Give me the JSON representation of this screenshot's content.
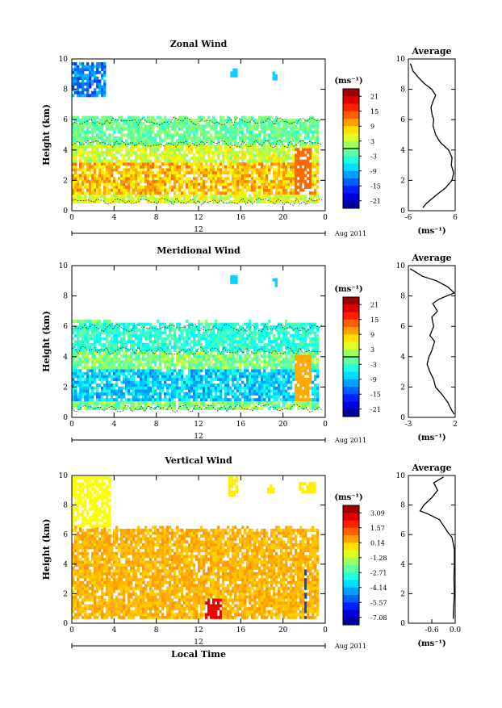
{
  "chart_data": [
    {
      "type": "heatmap",
      "title": "Zonal Wind",
      "ylabel": "Height (km)",
      "xlabel": "",
      "ylim": [
        0,
        10
      ],
      "xlim": [
        0,
        24
      ],
      "x_ticks": [
        "0",
        "4",
        "8",
        "12",
        "16",
        "20",
        "0"
      ],
      "y_ticks": [
        "0",
        "2",
        "4",
        "6",
        "8",
        "10"
      ],
      "date_mid_label": "12",
      "date_label": "Aug 2011",
      "colorbar": {
        "unit": "(ms⁻¹)",
        "ticks": [
          "21",
          "15",
          "9",
          "3",
          "-3",
          "-9",
          "-15",
          "-21"
        ],
        "range": [
          -24,
          24
        ],
        "contour_at": 0
      },
      "field": {
        "top_max": 6.2,
        "blue_top_region": [
          [
            0,
            3,
            7.5,
            9.6
          ],
          [
            15,
            15.5,
            8.8,
            9.3
          ],
          [
            19,
            19.3,
            8.6,
            9.1
          ]
        ],
        "base": 0.5
      },
      "average": {
        "title": "Average",
        "xlabel": "(ms⁻¹)",
        "xticks": [
          "-6",
          "6"
        ],
        "xlim": [
          -6,
          6
        ],
        "points": [
          [
            -5.5,
            9.7
          ],
          [
            -4.8,
            9.2
          ],
          [
            -3.5,
            8.8
          ],
          [
            -2,
            8.4
          ],
          [
            0,
            8
          ],
          [
            1,
            7.6
          ],
          [
            0.3,
            7.2
          ],
          [
            -0.2,
            6.8
          ],
          [
            0.1,
            6.3
          ],
          [
            0.5,
            6
          ],
          [
            0.3,
            5.6
          ],
          [
            1,
            5
          ],
          [
            2.2,
            4.5
          ],
          [
            4.3,
            4
          ],
          [
            5.2,
            3.5
          ],
          [
            5,
            3
          ],
          [
            5.6,
            2.5
          ],
          [
            5.2,
            2
          ],
          [
            3.5,
            1.5
          ],
          [
            1,
            1
          ],
          [
            -1.3,
            0.5
          ],
          [
            -2.3,
            0.2
          ]
        ]
      }
    },
    {
      "type": "heatmap",
      "title": "Meridional Wind",
      "ylabel": "Height (km)",
      "xlabel": "",
      "ylim": [
        0,
        10
      ],
      "xlim": [
        0,
        24
      ],
      "x_ticks": [
        "0",
        "4",
        "8",
        "12",
        "16",
        "20",
        "0"
      ],
      "y_ticks": [
        "0",
        "2",
        "4",
        "6",
        "8",
        "10"
      ],
      "date_mid_label": "12",
      "date_label": "Aug 2011",
      "colorbar": {
        "unit": "(ms⁻¹)",
        "ticks": [
          "21",
          "15",
          "9",
          "3",
          "-3",
          "-9",
          "-15",
          "-21"
        ],
        "range": [
          -24,
          24
        ],
        "contour_at": 0
      },
      "field": {
        "top_max": 6.3,
        "blue_top_region": [
          [
            15,
            15.5,
            8.8,
            9.3
          ],
          [
            19,
            19.3,
            8.6,
            9.1
          ]
        ],
        "base": 0.5
      },
      "average": {
        "title": "Average",
        "xlabel": "(ms⁻¹)",
        "xticks": [
          "-3",
          "2"
        ],
        "xlim": [
          -3,
          2
        ],
        "points": [
          [
            -2.8,
            9.8
          ],
          [
            -1.5,
            9.3
          ],
          [
            0,
            9
          ],
          [
            1.2,
            8.6
          ],
          [
            1.9,
            8.2
          ],
          [
            0.3,
            7.8
          ],
          [
            -0.4,
            7.5
          ],
          [
            0.1,
            7
          ],
          [
            -0.5,
            6.6
          ],
          [
            -0.3,
            6
          ],
          [
            -0.7,
            5.4
          ],
          [
            -0.2,
            5
          ],
          [
            -0.5,
            4.4
          ],
          [
            -0.8,
            4
          ],
          [
            -1,
            3.5
          ],
          [
            -0.7,
            3
          ],
          [
            -0.3,
            2.5
          ],
          [
            -0.1,
            2
          ],
          [
            0.6,
            1.5
          ],
          [
            1.2,
            1
          ],
          [
            1.6,
            0.5
          ],
          [
            1.9,
            0.2
          ]
        ]
      }
    },
    {
      "type": "heatmap",
      "title": "Vertical Wind",
      "ylabel": "Height (km)",
      "xlabel": "Local Time",
      "ylim": [
        0,
        10
      ],
      "xlim": [
        0,
        24
      ],
      "x_ticks": [
        "0",
        "4",
        "8",
        "12",
        "16",
        "20",
        "0"
      ],
      "y_ticks": [
        "0",
        "2",
        "4",
        "6",
        "8",
        "10"
      ],
      "date_mid_label": "12",
      "date_label": "Aug 2011",
      "colorbar": {
        "unit": "(ms⁻¹)",
        "ticks": [
          "3.09",
          "1.57",
          "0.14",
          "-1.28",
          "-2.71",
          "-4.14",
          "-5.57",
          "-7.08"
        ],
        "range": [
          3.8,
          -7.8
        ]
      },
      "field": {
        "top_max": 6.5,
        "base": 0.3
      },
      "average": {
        "title": "Average",
        "xlabel": "(ms⁻¹)",
        "xticks": [
          "-0.6",
          "0.0"
        ],
        "xlim": [
          -1.2,
          0
        ],
        "points": [
          [
            -0.3,
            9.9
          ],
          [
            -0.55,
            9.5
          ],
          [
            -0.45,
            9
          ],
          [
            -0.6,
            8.5
          ],
          [
            -0.8,
            8
          ],
          [
            -0.9,
            7.6
          ],
          [
            -0.7,
            7.4
          ],
          [
            -0.4,
            7
          ],
          [
            -0.3,
            6.6
          ],
          [
            -0.2,
            6.2
          ],
          [
            -0.08,
            5.8
          ],
          [
            -0.05,
            5.4
          ],
          [
            -0.02,
            5
          ],
          [
            -0.02,
            4
          ],
          [
            -0.03,
            3
          ],
          [
            -0.02,
            2
          ],
          [
            -0.04,
            1
          ],
          [
            -0.05,
            0.3
          ]
        ]
      }
    }
  ]
}
